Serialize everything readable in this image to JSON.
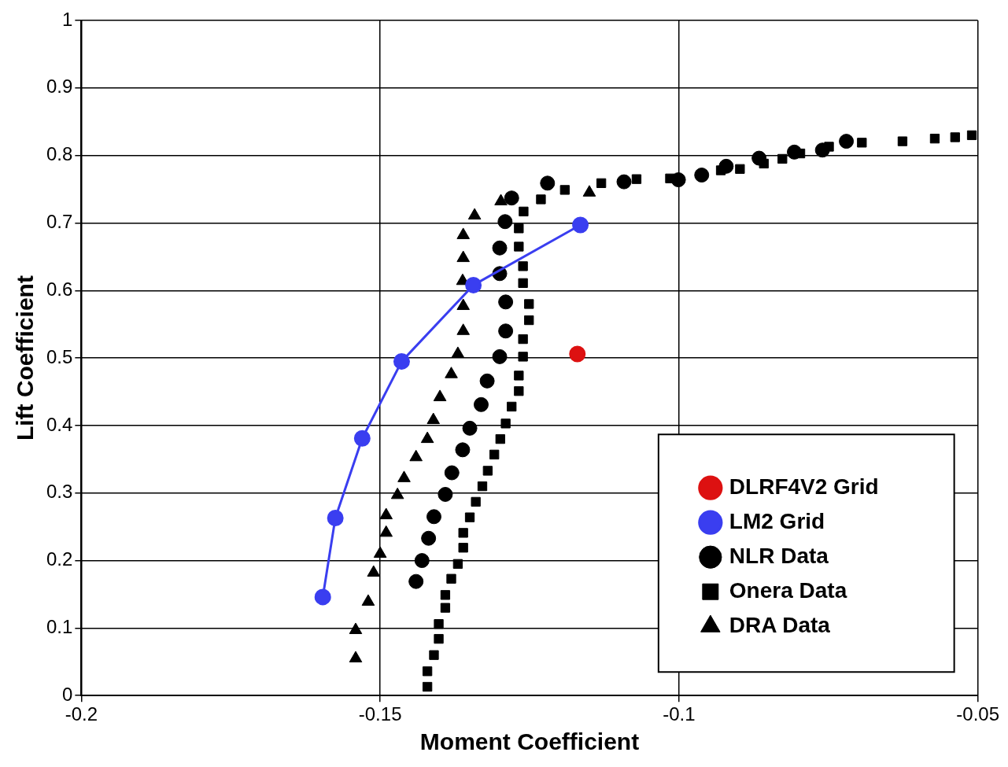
{
  "chart_data": {
    "type": "line",
    "xlabel": "Moment Coefficient",
    "ylabel": "Lift Coefficient",
    "xlim": [
      -0.2,
      -0.05
    ],
    "xticks": [
      -0.2,
      -0.15,
      -0.1,
      -0.05
    ],
    "ylim": [
      0,
      1
    ],
    "yticks": [
      0,
      0.1,
      0.2,
      0.3,
      0.4,
      0.5,
      0.6,
      0.7,
      0.8,
      0.9,
      1
    ],
    "grid": true,
    "legend": "bottom right",
    "series": [
      {
        "name": "DLRF4V2 Grid",
        "type": "line",
        "marker": "circle",
        "color": "#dd1111",
        "x": [
          -0.117
        ],
        "values": [
          0.506
        ]
      },
      {
        "name": "LM2 Grid",
        "type": "line",
        "marker": "circle",
        "color": "#3a3ef0",
        "x": [
          -0.1596,
          -0.1575,
          -0.153,
          -0.1464,
          -0.1344,
          -0.1165
        ],
        "values": [
          0.146,
          0.263,
          0.381,
          0.495,
          0.608,
          0.697
        ]
      },
      {
        "name": "NLR Data",
        "type": "scatter",
        "marker": "circle",
        "color": "#000000",
        "x": [
          -0.144,
          -0.143,
          -0.1419,
          -0.141,
          -0.1391,
          -0.138,
          -0.1362,
          -0.135,
          -0.1331,
          -0.1321,
          -0.13,
          -0.129,
          -0.129,
          -0.13,
          -0.13,
          -0.1291,
          -0.128,
          -0.122,
          -0.1092,
          -0.1001,
          -0.0962,
          -0.0921,
          -0.0866,
          -0.0807,
          -0.076,
          -0.072
        ],
        "values": [
          0.169,
          0.2,
          0.233,
          0.265,
          0.298,
          0.33,
          0.364,
          0.396,
          0.431,
          0.466,
          0.502,
          0.54,
          0.583,
          0.625,
          0.663,
          0.702,
          0.737,
          0.759,
          0.761,
          0.764,
          0.771,
          0.784,
          0.796,
          0.805,
          0.808,
          0.821
        ]
      },
      {
        "name": "Onera Data",
        "type": "scatter",
        "marker": "square",
        "color": "#000000",
        "x": [
          -0.1421,
          -0.1421,
          -0.141,
          -0.1402,
          -0.1402,
          -0.1391,
          -0.1391,
          -0.1381,
          -0.137,
          -0.1361,
          -0.1361,
          -0.135,
          -0.134,
          -0.1329,
          -0.132,
          -0.1309,
          -0.1299,
          -0.129,
          -0.128,
          -0.1268,
          -0.1268,
          -0.1261,
          -0.1261,
          -0.1251,
          -0.1251,
          -0.1261,
          -0.1261,
          -0.1268,
          -0.1268,
          -0.126,
          -0.1231,
          -0.1191,
          -0.113,
          -0.1071,
          -0.1015,
          -0.093,
          -0.0898,
          -0.0858,
          -0.0827,
          -0.0797,
          -0.0749,
          -0.0694,
          -0.0626,
          -0.0572,
          -0.0538,
          -0.051
        ],
        "values": [
          0.013,
          0.036,
          0.06,
          0.084,
          0.106,
          0.13,
          0.149,
          0.173,
          0.195,
          0.219,
          0.241,
          0.264,
          0.287,
          0.31,
          0.333,
          0.357,
          0.38,
          0.403,
          0.428,
          0.451,
          0.474,
          0.502,
          0.528,
          0.556,
          0.58,
          0.611,
          0.636,
          0.665,
          0.692,
          0.717,
          0.735,
          0.749,
          0.759,
          0.765,
          0.766,
          0.778,
          0.78,
          0.788,
          0.795,
          0.803,
          0.813,
          0.819,
          0.821,
          0.825,
          0.827,
          0.83
        ]
      },
      {
        "name": "DRA Data",
        "type": "scatter",
        "marker": "triangle",
        "color": "#000000",
        "x": [
          -0.1541,
          -0.1541,
          -0.152,
          -0.1511,
          -0.15,
          -0.149,
          -0.149,
          -0.1471,
          -0.146,
          -0.144,
          -0.1421,
          -0.1411,
          -0.14,
          -0.1381,
          -0.137,
          -0.1361,
          -0.1361,
          -0.1362,
          -0.1361,
          -0.1361,
          -0.1342,
          -0.1298,
          -0.115
        ],
        "values": [
          0.055,
          0.097,
          0.139,
          0.182,
          0.21,
          0.241,
          0.267,
          0.297,
          0.322,
          0.353,
          0.38,
          0.408,
          0.442,
          0.476,
          0.506,
          0.54,
          0.577,
          0.614,
          0.648,
          0.682,
          0.711,
          0.732,
          0.745
        ]
      }
    ]
  }
}
